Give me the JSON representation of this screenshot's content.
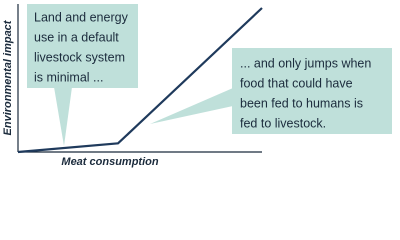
{
  "chart_data": {
    "type": "line",
    "x_label": "Meat consumption",
    "y_label": "Environmental impact",
    "x": [
      0,
      41,
      100
    ],
    "series": [
      {
        "color": "#1f3a5c",
        "values": [
          0,
          6,
          100
        ]
      }
    ],
    "xlim": [
      0,
      100
    ],
    "ylim": [
      0,
      100
    ],
    "annotations": [
      {
        "lines": [
          "Land and energy",
          "use in a default",
          "livestock system",
          "is minimal ..."
        ]
      },
      {
        "lines": [
          "... and only jumps when",
          "food that could have",
          "been fed to humans is",
          "fed to livestock."
        ]
      }
    ]
  }
}
